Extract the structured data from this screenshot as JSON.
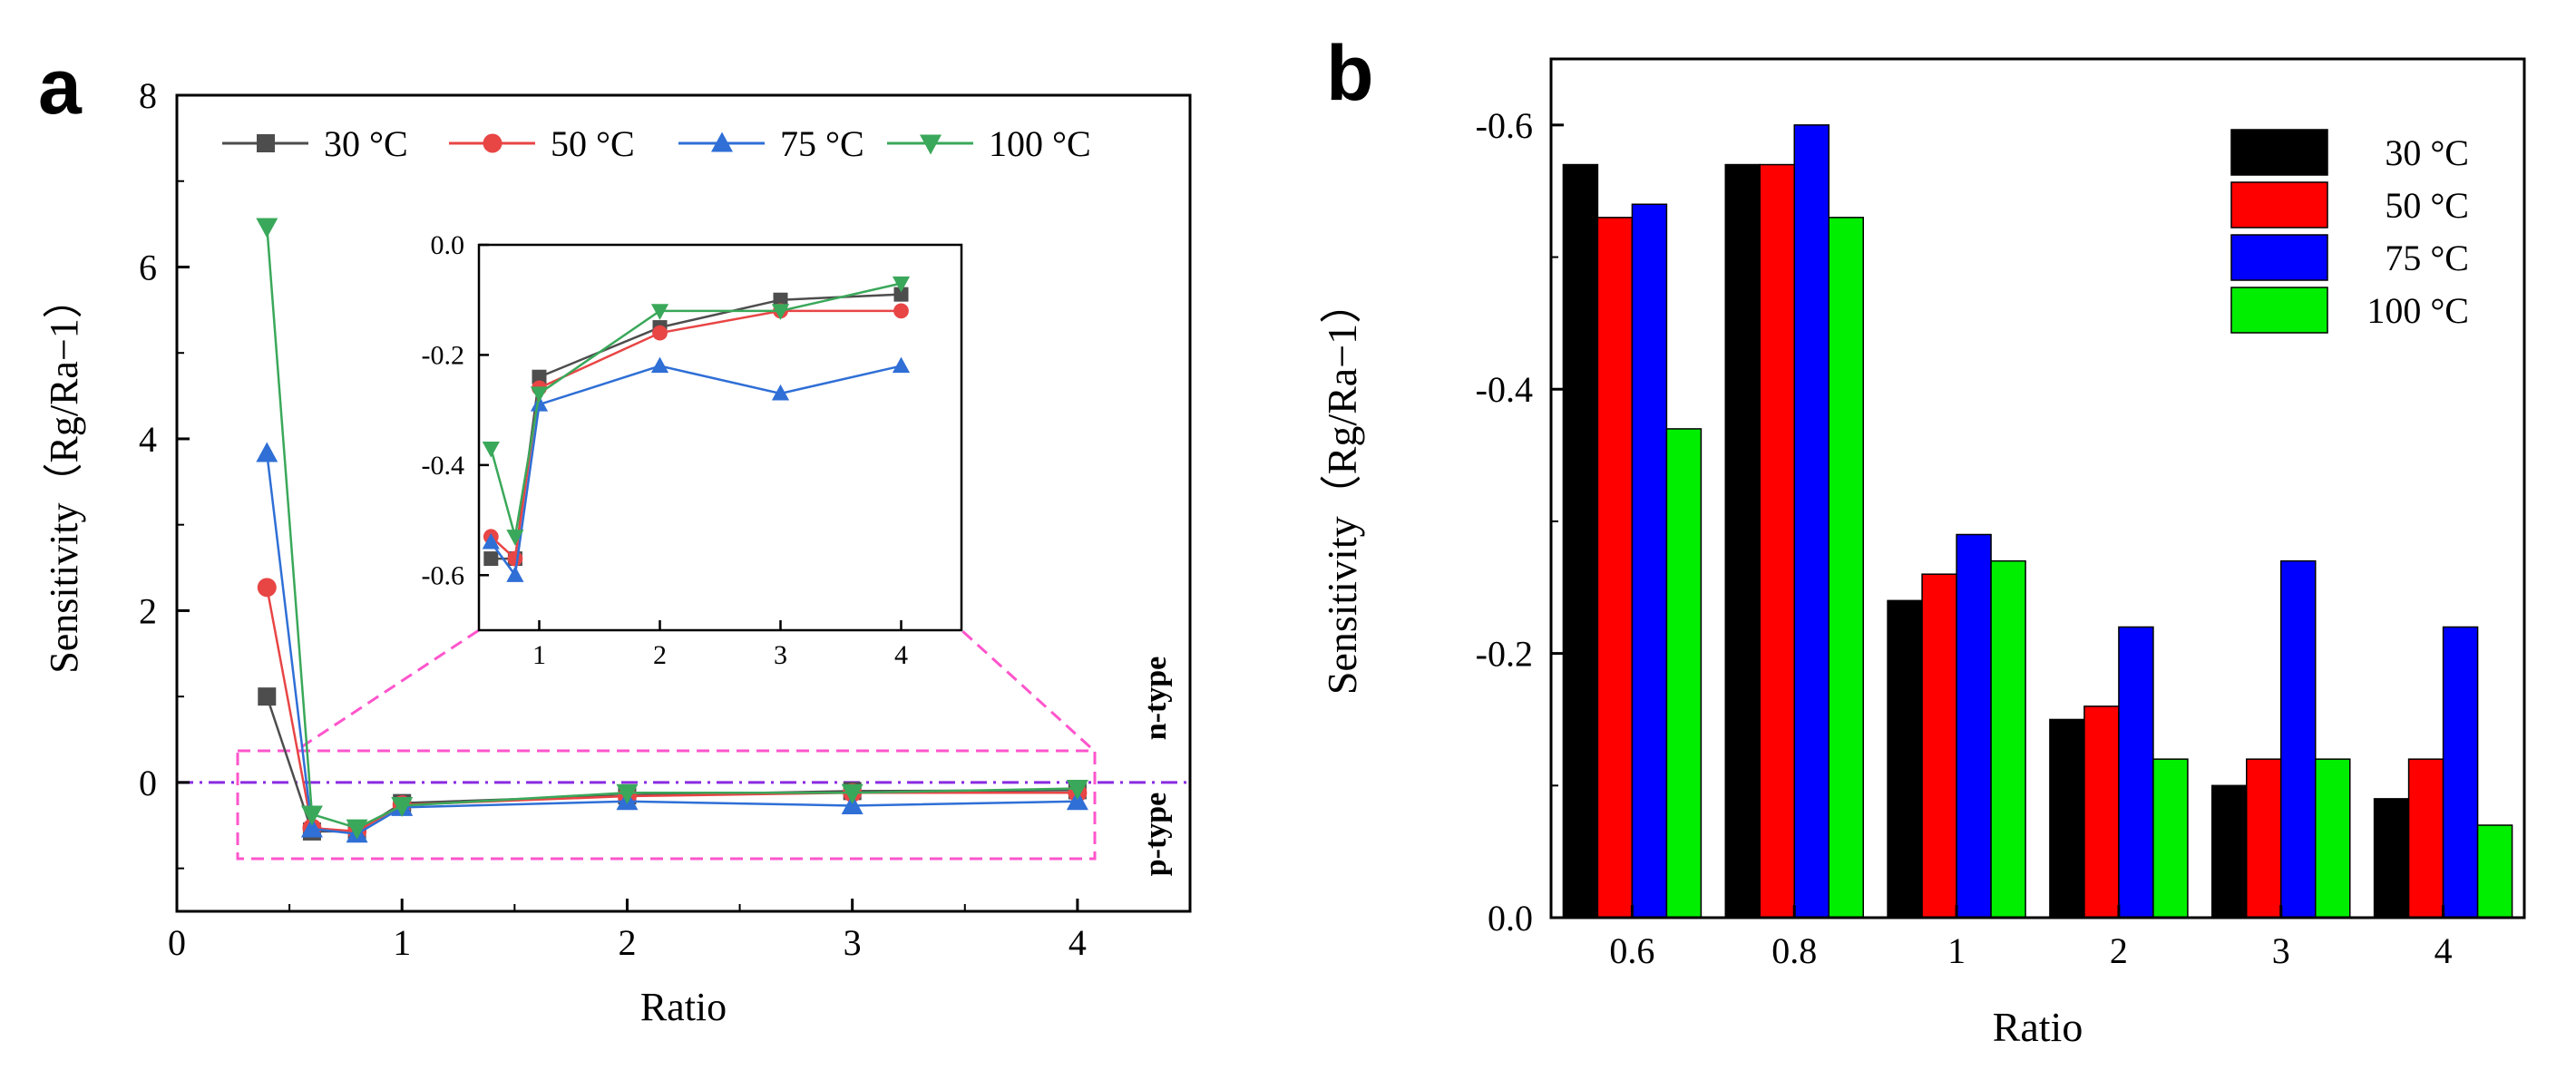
{
  "colors": {
    "c30": "#4d4d4d",
    "c50": "#e84545",
    "c75": "#2f6fd6",
    "c100": "#3aa85a",
    "bar30": "#000000",
    "bar50": "#ff0000",
    "bar75": "#0000ff",
    "bar100": "#00ee00",
    "zeroline": "#8a2be2",
    "zoombox": "#ff55cc"
  },
  "panel_a": {
    "label": "a",
    "type_n": "n-type",
    "type_p": "p-type"
  },
  "panel_b": {
    "label": "b"
  },
  "chart_data": [
    {
      "id": "a-main",
      "type": "line",
      "title": "",
      "xlabel": "Ratio",
      "ylabel": "Sensitivity（Rg/Ra−1）",
      "xlim": [
        0,
        4.5
      ],
      "ylim": [
        -1.5,
        8
      ],
      "xticks": [
        0,
        1,
        2,
        3,
        4
      ],
      "xtick_labels": [
        "0",
        "1",
        "2",
        "3",
        "4"
      ],
      "yticks": [
        0,
        2,
        4,
        6,
        8
      ],
      "ytick_labels": [
        "0",
        "2",
        "4",
        "6",
        "8"
      ],
      "legend_position": "top",
      "grid": false,
      "x": [
        0.4,
        0.6,
        0.8,
        1,
        2,
        3,
        4
      ],
      "series": [
        {
          "name": "30 °C",
          "marker": "square",
          "color_key": "c30",
          "values": [
            1.0,
            -0.57,
            -0.57,
            -0.24,
            -0.15,
            -0.1,
            -0.09
          ]
        },
        {
          "name": "50 °C",
          "marker": "circle",
          "color_key": "c50",
          "values": [
            2.27,
            -0.53,
            -0.57,
            -0.26,
            -0.16,
            -0.12,
            -0.12
          ]
        },
        {
          "name": "75 °C",
          "marker": "triangle-up",
          "color_key": "c75",
          "values": [
            3.83,
            -0.54,
            -0.6,
            -0.29,
            -0.22,
            -0.27,
            -0.22
          ]
        },
        {
          "name": "100 °C",
          "marker": "triangle-down",
          "color_key": "c100",
          "values": [
            6.47,
            -0.37,
            -0.53,
            -0.27,
            -0.12,
            -0.12,
            -0.07
          ]
        }
      ],
      "annotations": [
        "n-type",
        "p-type"
      ]
    },
    {
      "id": "a-inset",
      "type": "line",
      "title": "",
      "xlabel": "",
      "ylabel": "",
      "xlim": [
        0.5,
        4.5
      ],
      "ylim": [
        -0.7,
        0
      ],
      "xticks": [
        1,
        2,
        3,
        4
      ],
      "xtick_labels": [
        "1",
        "2",
        "3",
        "4"
      ],
      "yticks": [
        0,
        -0.2,
        -0.4,
        -0.6
      ],
      "ytick_labels": [
        "0.0",
        "-0.2",
        "-0.4",
        "-0.6"
      ],
      "x": [
        0.6,
        0.8,
        1,
        2,
        3,
        4
      ],
      "series": [
        {
          "name": "30 °C",
          "marker": "square",
          "color_key": "c30",
          "values": [
            -0.57,
            -0.57,
            -0.24,
            -0.15,
            -0.1,
            -0.09
          ]
        },
        {
          "name": "50 °C",
          "marker": "circle",
          "color_key": "c50",
          "values": [
            -0.53,
            -0.57,
            -0.26,
            -0.16,
            -0.12,
            -0.12
          ]
        },
        {
          "name": "75 °C",
          "marker": "triangle-up",
          "color_key": "c75",
          "values": [
            -0.54,
            -0.6,
            -0.29,
            -0.22,
            -0.27,
            -0.22
          ]
        },
        {
          "name": "100 °C",
          "marker": "triangle-down",
          "color_key": "c100",
          "values": [
            -0.37,
            -0.53,
            -0.27,
            -0.12,
            -0.12,
            -0.07
          ]
        }
      ]
    },
    {
      "id": "b",
      "type": "bar",
      "title": "",
      "xlabel": "Ratio",
      "ylabel": "Sensitivity（Rg/Ra−1）",
      "categories": [
        "0.6",
        "0.8",
        "1",
        "2",
        "3",
        "4"
      ],
      "ylim": [
        0,
        -0.65
      ],
      "yticks": [
        0,
        -0.2,
        -0.4,
        -0.6
      ],
      "ytick_labels": [
        "0.0",
        "-0.2",
        "-0.4",
        "-0.6"
      ],
      "legend_position": "top-right",
      "grid": false,
      "series": [
        {
          "name": "30 °C",
          "color_key": "bar30",
          "values": [
            -0.57,
            -0.57,
            -0.24,
            -0.15,
            -0.1,
            -0.09
          ]
        },
        {
          "name": "50 °C",
          "color_key": "bar50",
          "values": [
            -0.53,
            -0.57,
            -0.26,
            -0.16,
            -0.12,
            -0.12
          ]
        },
        {
          "name": "75 °C",
          "color_key": "bar75",
          "values": [
            -0.54,
            -0.6,
            -0.29,
            -0.22,
            -0.27,
            -0.22
          ]
        },
        {
          "name": "100 °C",
          "color_key": "bar100",
          "values": [
            -0.37,
            -0.53,
            -0.27,
            -0.12,
            -0.12,
            -0.07
          ]
        }
      ]
    }
  ]
}
